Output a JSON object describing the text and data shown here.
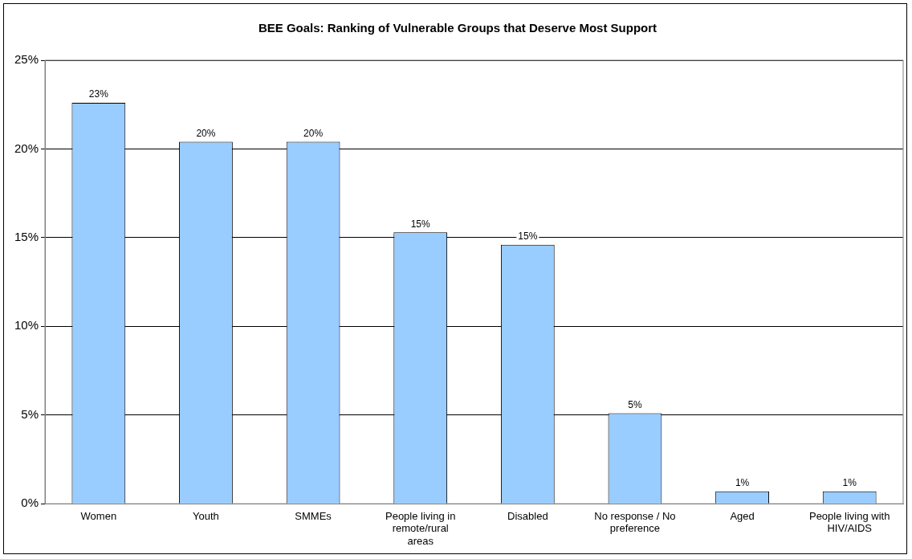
{
  "chart_data": {
    "type": "bar",
    "title": "BEE Goals: Ranking of Vulnerable Groups that Deserve Most Support",
    "categories": [
      "Women",
      "Youth",
      "SMMEs",
      "People living in remote/rural areas",
      "Disabled",
      "No response / No preference",
      "Aged",
      "People living with HIV/AIDS"
    ],
    "values": [
      22.6,
      20.4,
      20.4,
      15.3,
      14.6,
      5.1,
      0.7,
      0.7
    ],
    "value_labels": [
      "23%",
      "20%",
      "20%",
      "15%",
      "15%",
      "5%",
      "1%",
      "1%"
    ],
    "color": "#99ccff",
    "ylim": [
      0,
      25
    ],
    "yticks": [
      {
        "value": 0,
        "label": "0%"
      },
      {
        "value": 5,
        "label": "5%"
      },
      {
        "value": 10,
        "label": "10%"
      },
      {
        "value": 15,
        "label": "15%"
      },
      {
        "value": 20,
        "label": "20%"
      },
      {
        "value": 25,
        "label": "25%"
      }
    ],
    "grid": "y",
    "legend": false
  }
}
